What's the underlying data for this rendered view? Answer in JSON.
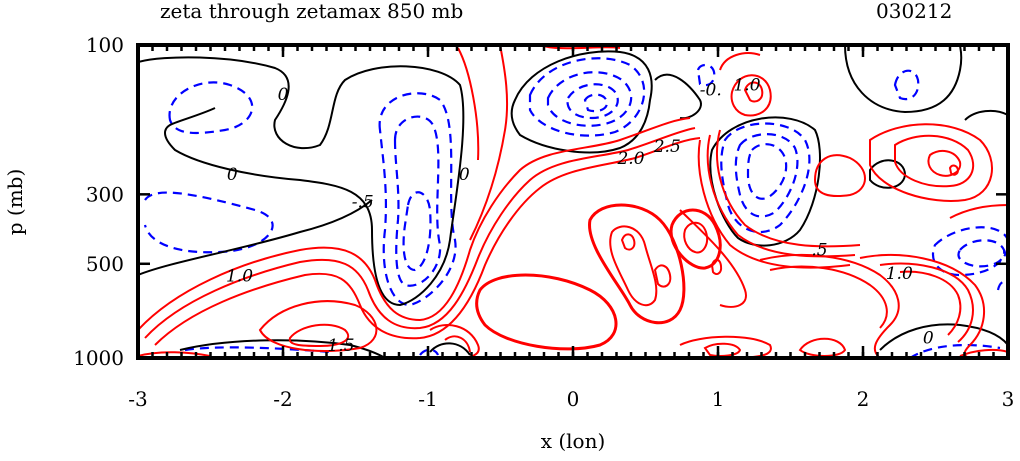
{
  "chart_data": {
    "type": "contour",
    "title": "zeta through zetamax 850 mb",
    "date_code": "030212",
    "xlabel": "x (lon)",
    "ylabel": "p (mb)",
    "xlim": [
      -3,
      3
    ],
    "ylim": [
      1000,
      100
    ],
    "y_scale": "log",
    "x_ticks": [
      "-3",
      "-2",
      "-1",
      "0",
      "1",
      "2",
      "3"
    ],
    "x_tick_values": [
      -3,
      -2,
      -1,
      0,
      1,
      2,
      3
    ],
    "y_ticks": [
      "100",
      "300",
      "500",
      "1000"
    ],
    "y_tick_values": [
      100,
      300,
      500,
      1000
    ],
    "contour_labels": [
      {
        "text": "0",
        "x": -2.0,
        "y": 150
      },
      {
        "text": "0",
        "x": -2.35,
        "y": 270
      },
      {
        "text": "0",
        "x": -0.75,
        "y": 270
      },
      {
        "text": "-.5",
        "x": -1.45,
        "y": 330
      },
      {
        "text": "1.0",
        "x": -2.3,
        "y": 570
      },
      {
        "text": "1.5",
        "x": -1.6,
        "y": 950
      },
      {
        "text": "2.0",
        "x": 0.4,
        "y": 240
      },
      {
        "text": "2.5",
        "x": 0.65,
        "y": 220
      },
      {
        "text": "-0.",
        "x": 0.95,
        "y": 145
      },
      {
        "text": "1.0",
        "x": 1.2,
        "y": 140
      },
      {
        "text": ".5",
        "x": 1.7,
        "y": 470
      },
      {
        "text": "1.0",
        "x": 2.25,
        "y": 560
      },
      {
        "text": "0",
        "x": 2.45,
        "y": 900
      }
    ],
    "contour_colors": {
      "positive": "#ff0000",
      "zero": "#000000",
      "negative": "#0000ff"
    },
    "grid": false
  }
}
